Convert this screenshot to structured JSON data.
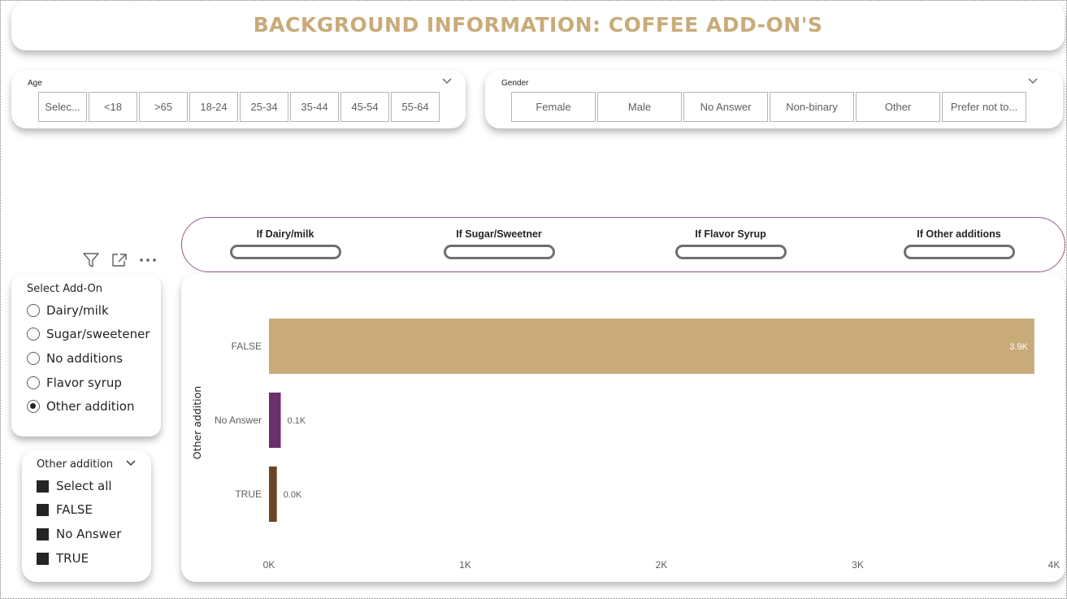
{
  "title": "BACKGROUND INFORMATION: COFFEE ADD-ON'S",
  "age_slicer": {
    "label": "Age",
    "options": [
      "Selec...",
      "<18",
      ">65",
      "18-24",
      "25-34",
      "35-44",
      "45-54",
      "55-64"
    ]
  },
  "gender_slicer": {
    "label": "Gender",
    "options": [
      "Female",
      "Male",
      "No Answer",
      "Non-binary",
      "Other",
      "Prefer not to..."
    ]
  },
  "conditional_pills": [
    "If Dairy/milk",
    "If Sugar/Sweetner",
    "If Flavor Syrup",
    "If Other additions"
  ],
  "visual_header_icons": [
    "filter-icon",
    "focus-mode-icon",
    "more-options-icon"
  ],
  "addon_slicer": {
    "title": "Select Add-On",
    "options": [
      {
        "label": "Dairy/milk",
        "selected": false
      },
      {
        "label": "Sugar/sweetener",
        "selected": false
      },
      {
        "label": "No additions",
        "selected": false
      },
      {
        "label": "Flavor syrup",
        "selected": false
      },
      {
        "label": "Other addition",
        "selected": true
      }
    ]
  },
  "other_slicer": {
    "title": "Other addition",
    "options": [
      "Select all",
      "FALSE",
      "No Answer",
      "TRUE"
    ]
  },
  "chart_data": {
    "type": "bar",
    "orientation": "horizontal",
    "categories": [
      "FALSE",
      "No Answer",
      "TRUE"
    ],
    "values": [
      3900,
      60,
      40
    ],
    "data_labels": [
      "3.9K",
      "0.1K",
      "0.0K"
    ],
    "colors": [
      "#c8ab79",
      "#6b2f6b",
      "#6b4423"
    ],
    "ylabel": "Other addition",
    "xlim": [
      0,
      4000
    ],
    "x_ticks": [
      0,
      1000,
      2000,
      3000,
      4000
    ],
    "x_tick_labels": [
      "0K",
      "1K",
      "2K",
      "3K",
      "4K"
    ],
    "grid": false
  }
}
